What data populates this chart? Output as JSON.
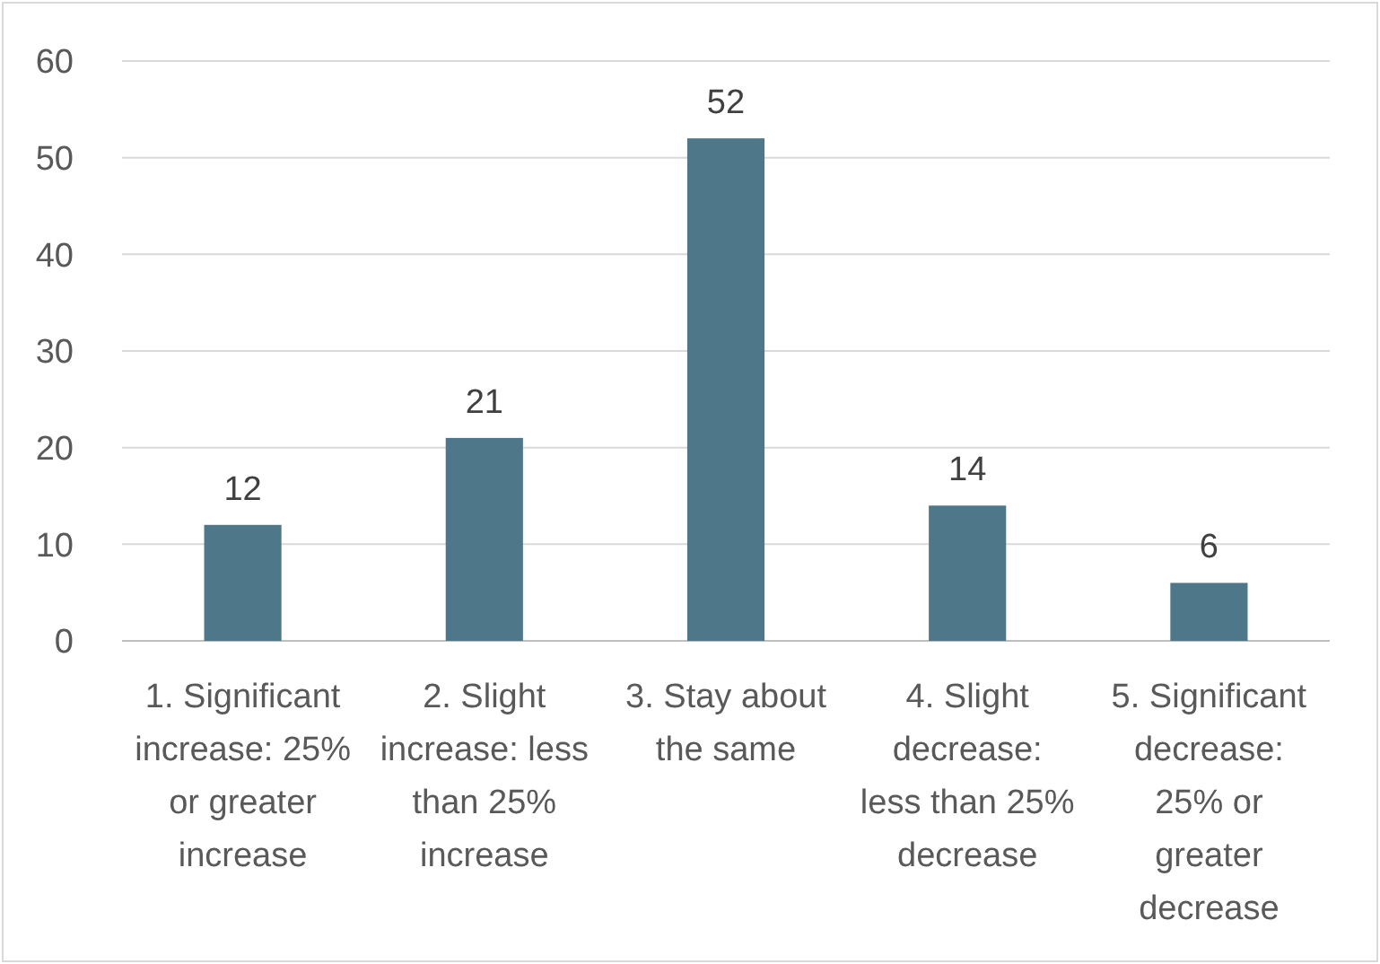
{
  "chart_data": {
    "type": "bar",
    "categories": [
      "1. Significant increase: 25% or greater increase",
      "2. Slight increase: less than 25% increase",
      "3. Stay about the same",
      "4. Slight decrease: less than 25% decrease",
      "5. Significant decrease: 25% or greater decrease"
    ],
    "values": [
      12,
      21,
      52,
      14,
      6
    ],
    "color": "#4e7889",
    "ylim": [
      0,
      60
    ],
    "yticks": [
      0,
      10,
      20,
      30,
      40,
      50,
      60
    ],
    "grid": "y",
    "data_labels": true
  }
}
